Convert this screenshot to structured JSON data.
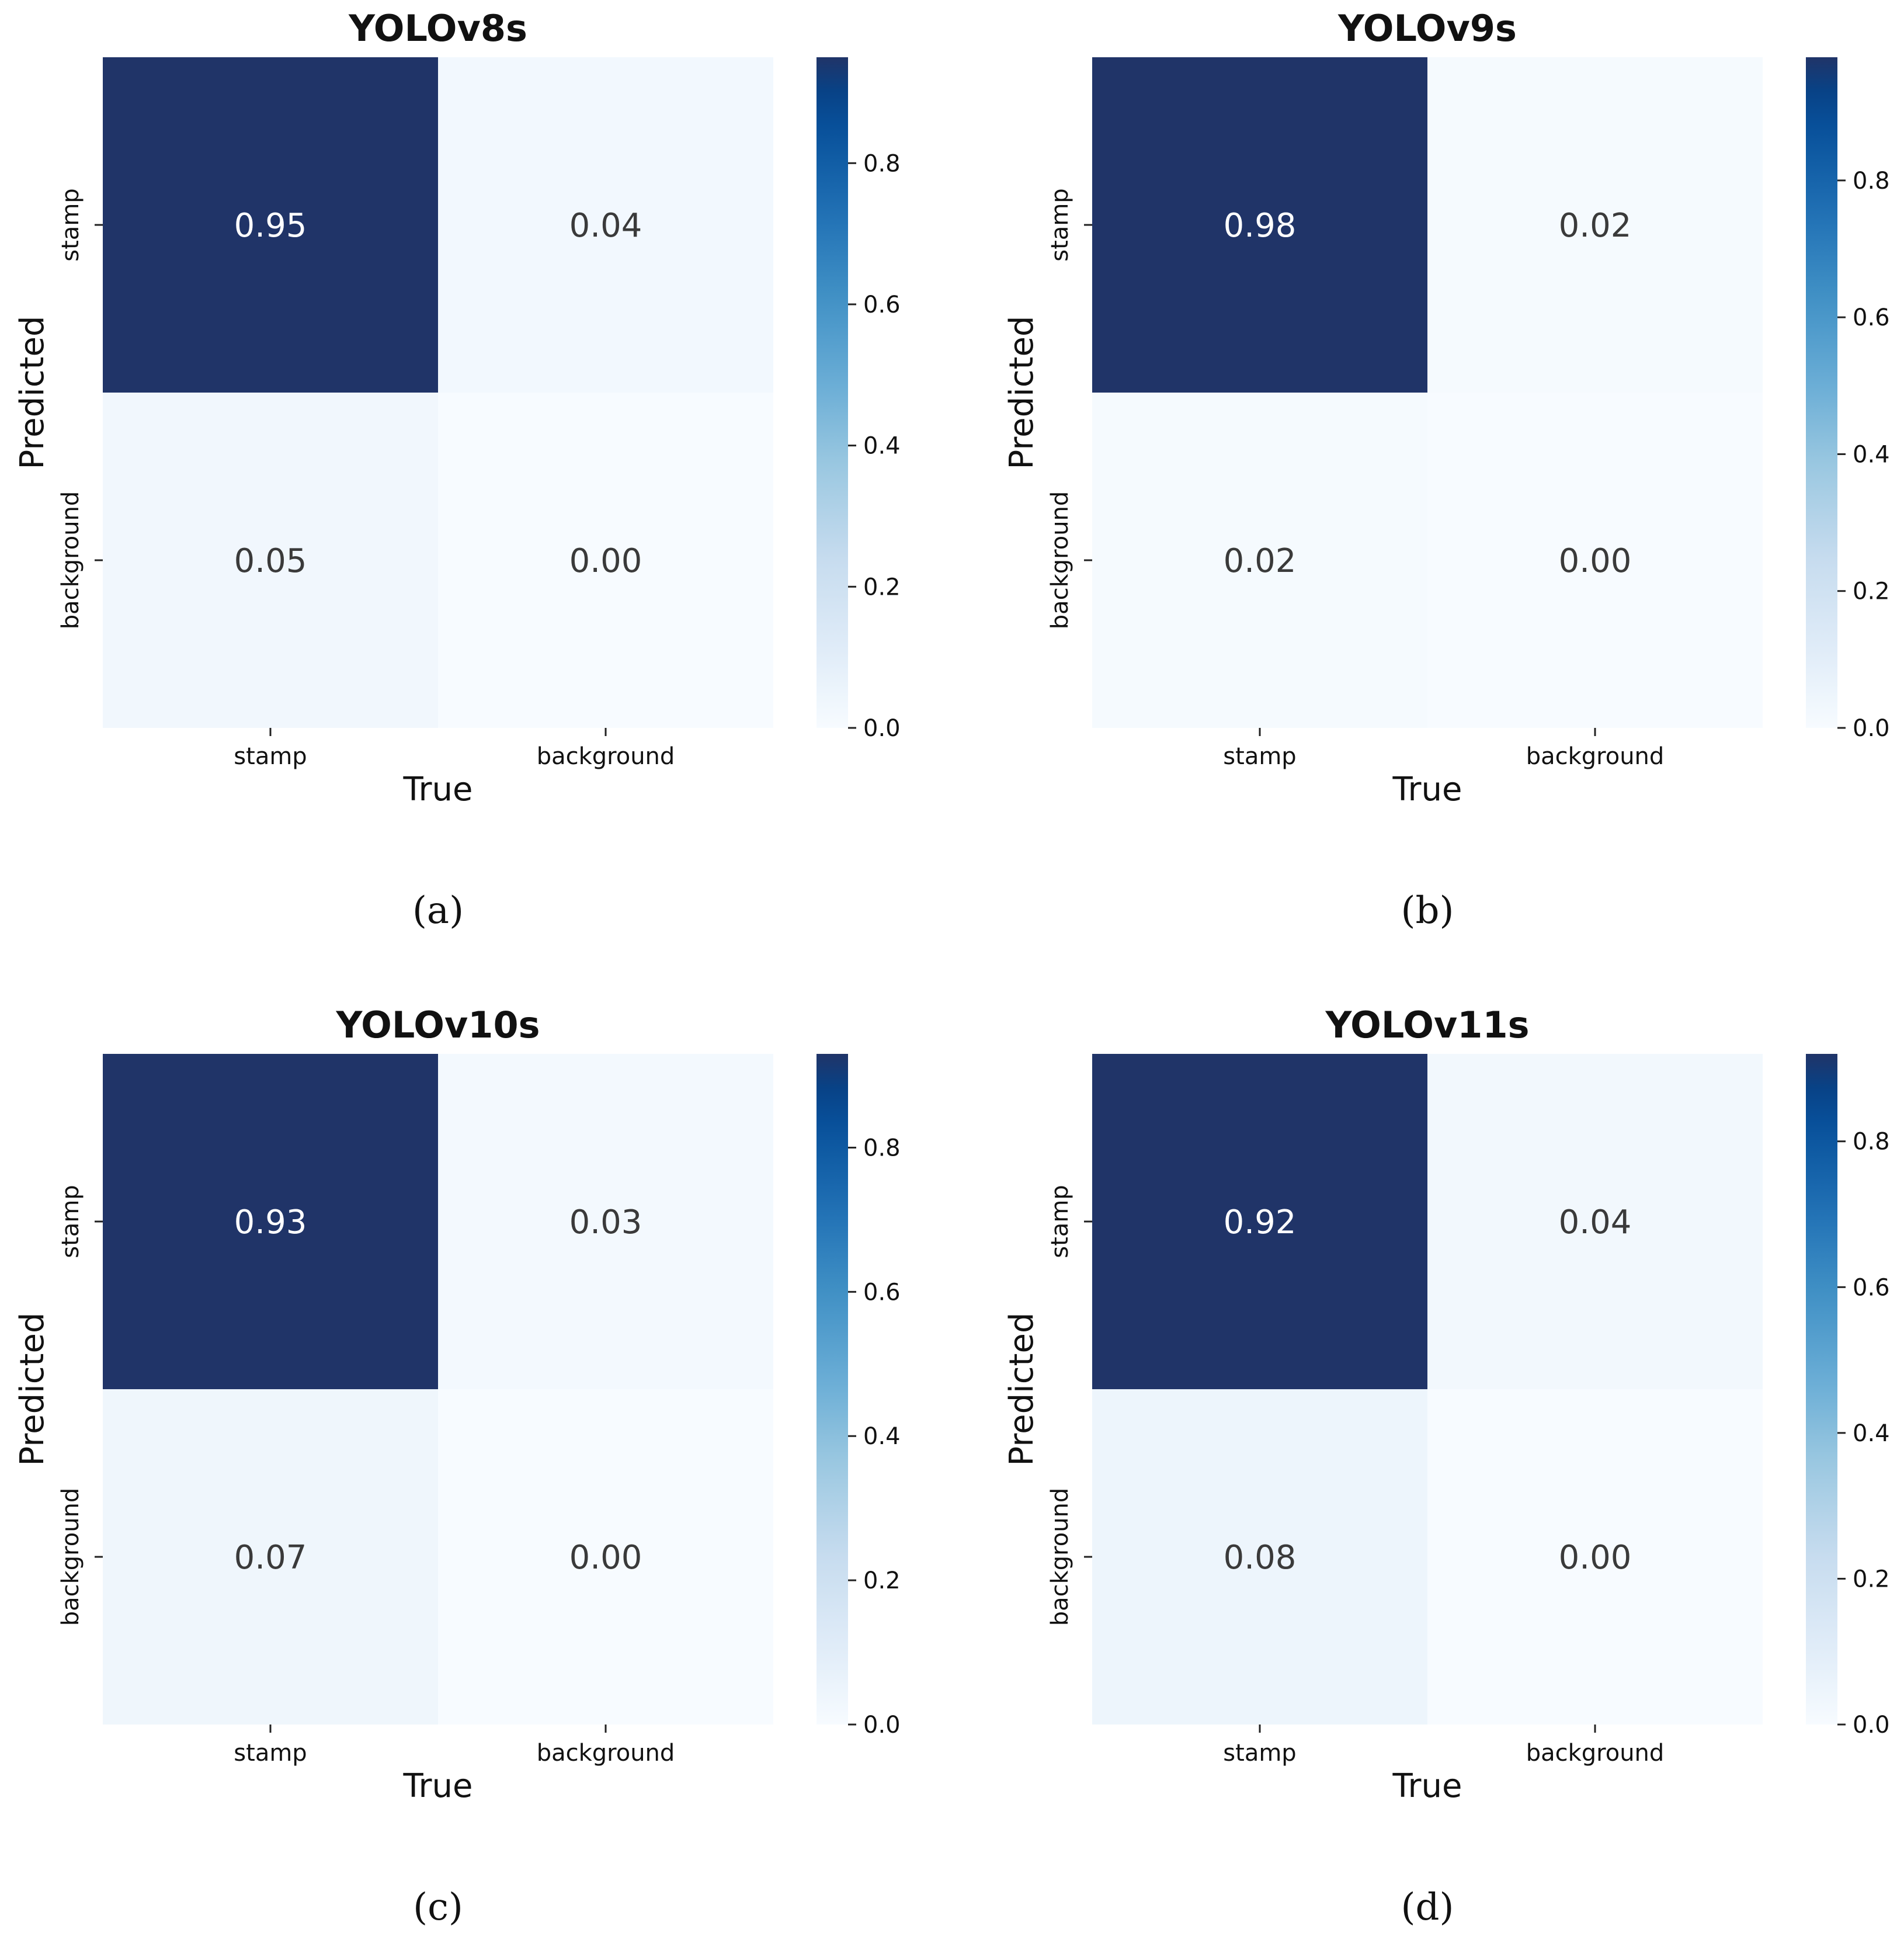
{
  "figure_type": "confusion_matrix_grid",
  "colormap": {
    "name": "Blues",
    "stops": [
      "#f7fbff",
      "#deebf7",
      "#c6dbef",
      "#9ecae1",
      "#6baed6",
      "#4292c6",
      "#2171b5",
      "#08519c",
      "#08306b"
    ],
    "high_cell_color": "#203468"
  },
  "chart_data": [
    {
      "type": "heatmap",
      "panel": "(a)",
      "title": "YOLOv8s",
      "xlabel": "True",
      "ylabel": "Predicted",
      "x_categories": [
        "stamp",
        "background"
      ],
      "y_categories": [
        "stamp",
        "background"
      ],
      "values": [
        [
          0.95,
          0.04
        ],
        [
          0.05,
          0.0
        ]
      ],
      "value_labels": [
        [
          "0.95",
          "0.04"
        ],
        [
          "0.05",
          "0.00"
        ]
      ],
      "colorbar": {
        "range": [
          0.0,
          0.95
        ],
        "ticks": [
          0.0,
          0.2,
          0.4,
          0.6,
          0.8
        ],
        "tick_labels": [
          "0.0",
          "0.2",
          "0.4",
          "0.6",
          "0.8"
        ]
      }
    },
    {
      "type": "heatmap",
      "panel": "(b)",
      "title": "YOLOv9s",
      "xlabel": "True",
      "ylabel": "Predicted",
      "x_categories": [
        "stamp",
        "background"
      ],
      "y_categories": [
        "stamp",
        "background"
      ],
      "values": [
        [
          0.98,
          0.02
        ],
        [
          0.02,
          0.0
        ]
      ],
      "value_labels": [
        [
          "0.98",
          "0.02"
        ],
        [
          "0.02",
          "0.00"
        ]
      ],
      "colorbar": {
        "range": [
          0.0,
          0.98
        ],
        "ticks": [
          0.0,
          0.2,
          0.4,
          0.6,
          0.8
        ],
        "tick_labels": [
          "0.0",
          "0.2",
          "0.4",
          "0.6",
          "0.8"
        ]
      }
    },
    {
      "type": "heatmap",
      "panel": "(c)",
      "title": "YOLOv10s",
      "xlabel": "True",
      "ylabel": "Predicted",
      "x_categories": [
        "stamp",
        "background"
      ],
      "y_categories": [
        "stamp",
        "background"
      ],
      "values": [
        [
          0.93,
          0.03
        ],
        [
          0.07,
          0.0
        ]
      ],
      "value_labels": [
        [
          "0.93",
          "0.03"
        ],
        [
          "0.07",
          "0.00"
        ]
      ],
      "colorbar": {
        "range": [
          0.0,
          0.93
        ],
        "ticks": [
          0.0,
          0.2,
          0.4,
          0.6,
          0.8
        ],
        "tick_labels": [
          "0.0",
          "0.2",
          "0.4",
          "0.6",
          "0.8"
        ]
      }
    },
    {
      "type": "heatmap",
      "panel": "(d)",
      "title": "YOLOv11s",
      "xlabel": "True",
      "ylabel": "Predicted",
      "x_categories": [
        "stamp",
        "background"
      ],
      "y_categories": [
        "stamp",
        "background"
      ],
      "values": [
        [
          0.92,
          0.04
        ],
        [
          0.08,
          0.0
        ]
      ],
      "value_labels": [
        [
          "0.92",
          "0.04"
        ],
        [
          "0.08",
          "0.00"
        ]
      ],
      "colorbar": {
        "range": [
          0.0,
          0.92
        ],
        "ticks": [
          0.0,
          0.2,
          0.4,
          0.6,
          0.8
        ],
        "tick_labels": [
          "0.0",
          "0.2",
          "0.4",
          "0.6",
          "0.8"
        ]
      }
    }
  ]
}
